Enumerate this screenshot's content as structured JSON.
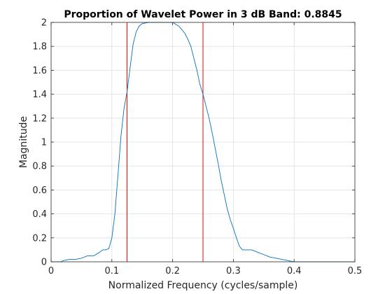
{
  "chart_data": {
    "type": "line",
    "title": "Proportion of Wavelet Power in 3 dB Band: 0.8845",
    "xlabel": "Normalized Frequency (cycles/sample)",
    "ylabel": "Magnitude",
    "xlim": [
      0,
      0.5
    ],
    "ylim": [
      0,
      2
    ],
    "xticks": [
      0,
      0.1,
      0.2,
      0.3,
      0.4,
      0.5
    ],
    "xtick_labels": [
      "0",
      "0.1",
      "0.2",
      "0.3",
      "0.4",
      "0.5"
    ],
    "yticks": [
      0,
      0.2,
      0.4,
      0.6,
      0.8,
      1,
      1.2,
      1.4,
      1.6,
      1.8,
      2
    ],
    "ytick_labels": [
      "0",
      "0.2",
      "0.4",
      "0.6",
      "0.8",
      "1",
      "1.2",
      "1.4",
      "1.6",
      "1.8",
      "2"
    ],
    "grid": true,
    "series": [
      {
        "color": "#0072BD",
        "x": [
          0,
          0.01,
          0.016,
          0.02,
          0.03,
          0.04,
          0.05,
          0.06,
          0.07,
          0.08,
          0.085,
          0.09,
          0.095,
          0.1,
          0.105,
          0.11,
          0.115,
          0.12,
          0.125,
          0.13,
          0.135,
          0.14,
          0.145,
          0.15,
          0.16,
          0.17,
          0.18,
          0.19,
          0.2,
          0.21,
          0.22,
          0.225,
          0.23,
          0.235,
          0.24,
          0.245,
          0.25,
          0.255,
          0.26,
          0.265,
          0.27,
          0.275,
          0.28,
          0.285,
          0.29,
          0.295,
          0.3,
          0.305,
          0.31,
          0.315,
          0.32,
          0.33,
          0.34,
          0.35,
          0.36,
          0.37,
          0.38,
          0.39,
          0.395,
          0.4,
          0.45,
          0.5
        ],
        "y": [
          0,
          0,
          0,
          0.01,
          0.02,
          0.02,
          0.03,
          0.05,
          0.05,
          0.08,
          0.1,
          0.1,
          0.11,
          0.2,
          0.4,
          0.72,
          1.05,
          1.28,
          1.42,
          1.62,
          1.82,
          1.92,
          1.97,
          1.99,
          2.0,
          2.0,
          2.0,
          2.0,
          2.0,
          1.97,
          1.91,
          1.86,
          1.8,
          1.7,
          1.6,
          1.48,
          1.4,
          1.3,
          1.2,
          1.08,
          0.95,
          0.82,
          0.68,
          0.56,
          0.44,
          0.35,
          0.28,
          0.2,
          0.13,
          0.1,
          0.1,
          0.1,
          0.08,
          0.06,
          0.04,
          0.03,
          0.02,
          0.01,
          0.005,
          0,
          0,
          0
        ]
      }
    ],
    "vertical_lines": [
      {
        "x": 0.125,
        "color": "#FF0000"
      },
      {
        "x": 0.25,
        "color": "#FF0000"
      }
    ]
  }
}
